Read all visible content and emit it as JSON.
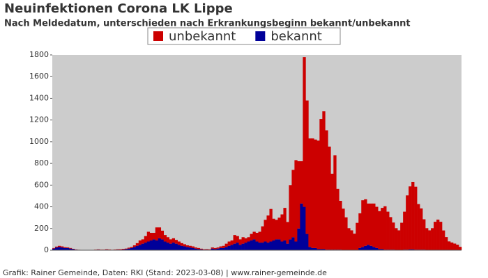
{
  "chart_data": {
    "type": "stacked_bar",
    "title": "Neuinfektionen Corona LK Lippe",
    "subtitle": "Nach Meldedatum, unterschieden nach Erkrankungsbeginn bekannt/unbekannt",
    "footer": "Grafik: Rainer Gemeinde, Daten: RKI (Stand: 2023-03-08) | www.rainer-gemeinde.de",
    "ylim": [
      0,
      1800
    ],
    "yticks": [
      0,
      200,
      400,
      600,
      800,
      1000,
      1200,
      1400,
      1600,
      1800
    ],
    "legend_position": "top",
    "categories": [
      null,
      null,
      null,
      null,
      null,
      null,
      null,
      null,
      null,
      null,
      null,
      null,
      null,
      null,
      null,
      null,
      null,
      null,
      null,
      null,
      null,
      null,
      null,
      null,
      null,
      null,
      null,
      null,
      null,
      null,
      null,
      null,
      null,
      null,
      null,
      null,
      null,
      null,
      null,
      null,
      null,
      null,
      null,
      null,
      null,
      null,
      null,
      null,
      null,
      null,
      null,
      null,
      null,
      null,
      null,
      null,
      null,
      null,
      null,
      null,
      null,
      null,
      null,
      null,
      null,
      null,
      null,
      null,
      null,
      null,
      null,
      null,
      null,
      null,
      null,
      null,
      null,
      null,
      null,
      null,
      null,
      null,
      null,
      null,
      null,
      null,
      null,
      null,
      null,
      null,
      null,
      null,
      null,
      null,
      null,
      null,
      null,
      null,
      null,
      null,
      null,
      null,
      null,
      null,
      null,
      null,
      null,
      null,
      null,
      null,
      null,
      null,
      null,
      null,
      null,
      null,
      null,
      null,
      null,
      null,
      null,
      null,
      null,
      null,
      null,
      null,
      null,
      null,
      null,
      null,
      null,
      null,
      null,
      null,
      null,
      null,
      null,
      null,
      null,
      null,
      null,
      null,
      null,
      null,
      null,
      null,
      null
    ],
    "series": [
      {
        "name": "bekannt",
        "color": "#000099",
        "values": [
          15,
          25,
          30,
          25,
          20,
          20,
          15,
          10,
          5,
          3,
          2,
          0,
          0,
          0,
          2,
          3,
          5,
          3,
          2,
          5,
          3,
          2,
          3,
          5,
          4,
          6,
          10,
          15,
          20,
          30,
          40,
          50,
          60,
          70,
          80,
          90,
          100,
          90,
          110,
          100,
          80,
          70,
          60,
          70,
          60,
          50,
          40,
          35,
          30,
          25,
          20,
          15,
          10,
          8,
          5,
          5,
          4,
          15,
          10,
          15,
          20,
          20,
          30,
          40,
          50,
          60,
          70,
          50,
          60,
          70,
          80,
          90,
          100,
          80,
          70,
          70,
          80,
          70,
          80,
          90,
          100,
          100,
          80,
          90,
          60,
          100,
          120,
          80,
          200,
          430,
          400,
          150,
          30,
          20,
          20,
          10,
          10,
          10,
          5,
          5,
          5,
          5,
          5,
          5,
          3,
          3,
          3,
          3,
          2,
          2,
          20,
          30,
          40,
          50,
          40,
          30,
          20,
          10,
          10,
          5,
          5,
          5,
          5,
          3,
          3,
          3,
          5,
          5,
          8,
          8,
          5,
          5,
          5,
          5,
          3,
          3,
          3,
          2,
          2,
          2,
          2,
          1,
          1,
          1,
          1,
          1,
          1
        ]
      },
      {
        "name": "unbekannt",
        "color": "#cc0000",
        "values": [
          5,
          8,
          10,
          10,
          8,
          6,
          5,
          3,
          2,
          1,
          1,
          0,
          0,
          0,
          1,
          2,
          3,
          2,
          3,
          4,
          3,
          2,
          3,
          4,
          5,
          6,
          5,
          8,
          10,
          15,
          25,
          40,
          40,
          60,
          90,
          70,
          60,
          120,
          100,
          80,
          60,
          50,
          40,
          40,
          35,
          30,
          25,
          20,
          15,
          15,
          15,
          10,
          10,
          6,
          4,
          5,
          4,
          10,
          10,
          10,
          15,
          20,
          30,
          40,
          40,
          80,
          60,
          50,
          60,
          40,
          40,
          60,
          70,
          80,
          100,
          150,
          200,
          250,
          300,
          200,
          180,
          200,
          250,
          300,
          200,
          500,
          620,
          750,
          620,
          390,
          1380,
          1230,
          1000,
          1010,
          1000,
          1000,
          1200,
          1270,
          1100,
          950,
          700,
          870,
          560,
          450,
          380,
          300,
          200,
          180,
          150,
          250,
          320,
          430,
          430,
          380,
          390,
          400,
          380,
          350,
          380,
          400,
          350,
          300,
          250,
          200,
          180,
          250,
          350,
          500,
          580,
          620,
          580,
          420,
          380,
          280,
          200,
          180,
          200,
          260,
          280,
          260,
          180,
          120,
          80,
          70,
          60,
          50,
          30
        ]
      }
    ]
  }
}
